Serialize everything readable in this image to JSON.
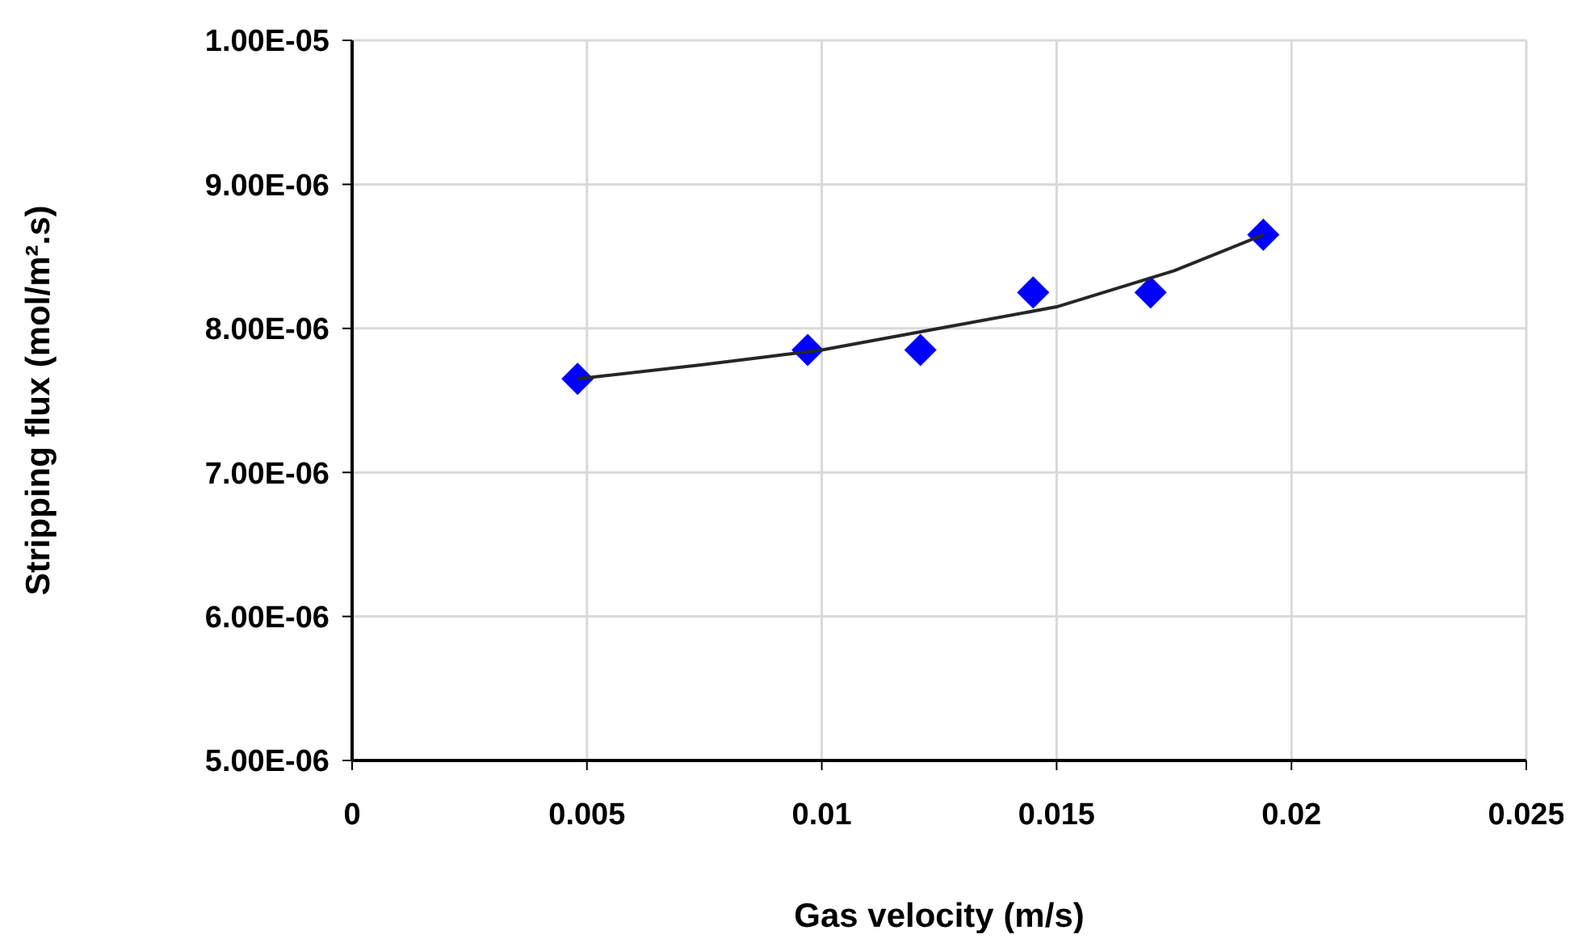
{
  "chart_data": {
    "type": "scatter",
    "xlabel": "Gas velocity (m/s)",
    "ylabel": "Stripping flux (mol/m².s)",
    "xlim": [
      0,
      0.025
    ],
    "xticks": [
      0,
      0.005,
      0.01,
      0.015,
      0.02,
      0.025
    ],
    "ylim": [
      5e-06,
      1e-05
    ],
    "yticks": [
      {
        "value": 5e-06,
        "label": "5.00E-06"
      },
      {
        "value": 6e-06,
        "label": "6.00E-06"
      },
      {
        "value": 7e-06,
        "label": "7.00E-06"
      },
      {
        "value": 8e-06,
        "label": "8.00E-06"
      },
      {
        "value": 9e-06,
        "label": "9.00E-06"
      },
      {
        "value": 1e-05,
        "label": "1.00E-05"
      }
    ],
    "grid": true,
    "series": [
      {
        "color": "#0000ff",
        "marker": "diamond",
        "x": [
          0.0048,
          0.0097,
          0.0121,
          0.0145,
          0.017,
          0.0194
        ],
        "values": [
          7.65e-06,
          7.85e-06,
          7.85e-06,
          8.25e-06,
          8.25e-06,
          8.65e-06
        ]
      },
      {
        "type": "line",
        "color": "#262626",
        "marker": "none",
        "line_style": "solid",
        "x": [
          0.0048,
          0.0075,
          0.01,
          0.0125,
          0.015,
          0.0175,
          0.0194
        ],
        "values": [
          7.65e-06,
          7.75e-06,
          7.85e-06,
          8e-06,
          8.15e-06,
          8.4e-06,
          8.65e-06
        ]
      }
    ]
  }
}
